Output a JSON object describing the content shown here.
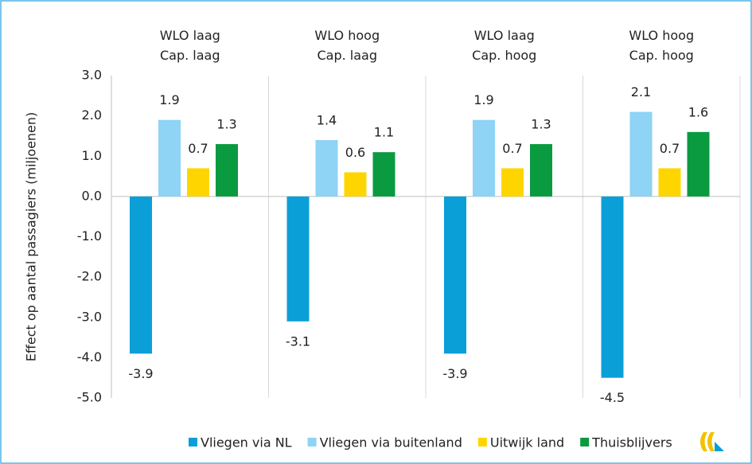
{
  "chart_data": {
    "type": "bar",
    "categories": [
      "WLO laag\nCap. laag",
      "WLO hoog\nCap. laag",
      "WLO laag\nCap. hoog",
      "WLO hoog\nCap. hoog"
    ],
    "series": [
      {
        "name": "Vliegen via NL",
        "color": "#0b9fd8",
        "values": [
          -3.9,
          -3.1,
          -3.9,
          -4.5
        ]
      },
      {
        "name": "Vliegen via buitenland",
        "color": "#8fd3f5",
        "values": [
          1.9,
          1.4,
          1.9,
          2.1
        ]
      },
      {
        "name": "Uitwijk land",
        "color": "#ffd500",
        "values": [
          0.7,
          0.6,
          0.7,
          0.7
        ]
      },
      {
        "name": "Thuisblijvers",
        "color": "#0a9a40",
        "values": [
          1.3,
          1.1,
          1.3,
          1.6
        ]
      }
    ],
    "ylabel": "Effect op aantal passagiers (miljoenen)",
    "ylim": [
      -5,
      3
    ],
    "yticks": [
      {
        "value": -5,
        "label": "-5.0"
      },
      {
        "value": -4,
        "label": "-4.0"
      },
      {
        "value": -3,
        "label": "-3.0"
      },
      {
        "value": -2,
        "label": "-2.0"
      },
      {
        "value": -1,
        "label": "-1.0"
      },
      {
        "value": 0,
        "label": "0.0"
      },
      {
        "value": 1,
        "label": "1.0"
      },
      {
        "value": 2,
        "label": "2.0"
      },
      {
        "value": 3,
        "label": "3.0"
      }
    ],
    "grid": false,
    "legend": "bottom"
  }
}
